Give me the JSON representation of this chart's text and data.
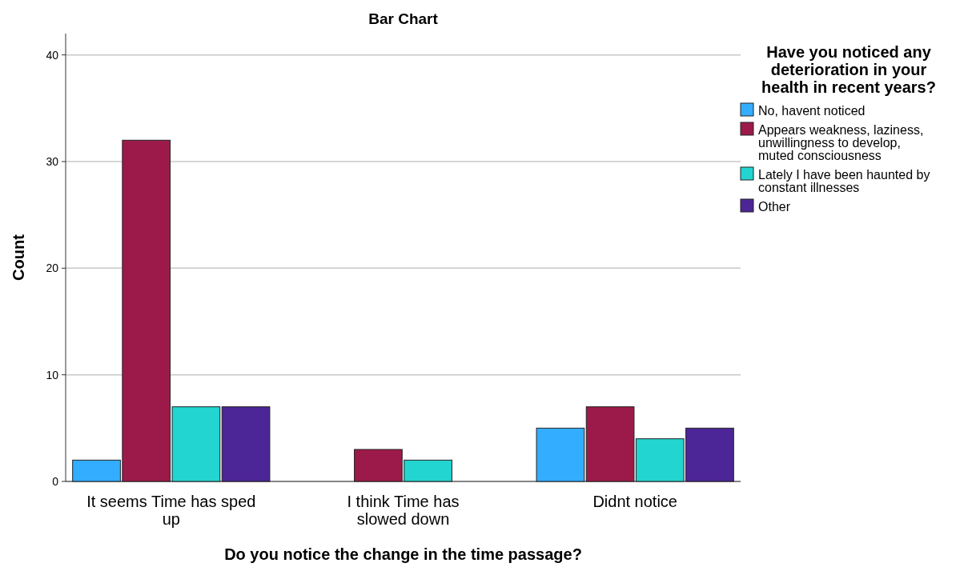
{
  "chart_data": {
    "type": "bar",
    "title": "Bar Chart",
    "xlabel": "Do you notice the change in the time passage?",
    "ylabel": "Count",
    "legend_title": "Have you noticed any deterioration in your health in recent years?",
    "categories": [
      "It seems Time has sped up",
      "I think Time has slowed down",
      "Didnt notice"
    ],
    "series": [
      {
        "name": "No, havent noticed",
        "color": "#33adff",
        "values": [
          2,
          null,
          5
        ]
      },
      {
        "name": "Appears weakness, laziness, unwillingness to develop, muted consciousness",
        "color": "#9c1a4a",
        "values": [
          32,
          3,
          7
        ]
      },
      {
        "name": "Lately I have been haunted by constant illnesses",
        "color": "#23d5d0",
        "values": [
          7,
          2,
          4
        ]
      },
      {
        "name": "Other",
        "color": "#4c2596",
        "values": [
          7,
          null,
          5
        ]
      }
    ],
    "ylim": [
      0,
      42
    ],
    "yticks": [
      0,
      10,
      20,
      30,
      40
    ],
    "grid": "y",
    "legend": "right"
  }
}
